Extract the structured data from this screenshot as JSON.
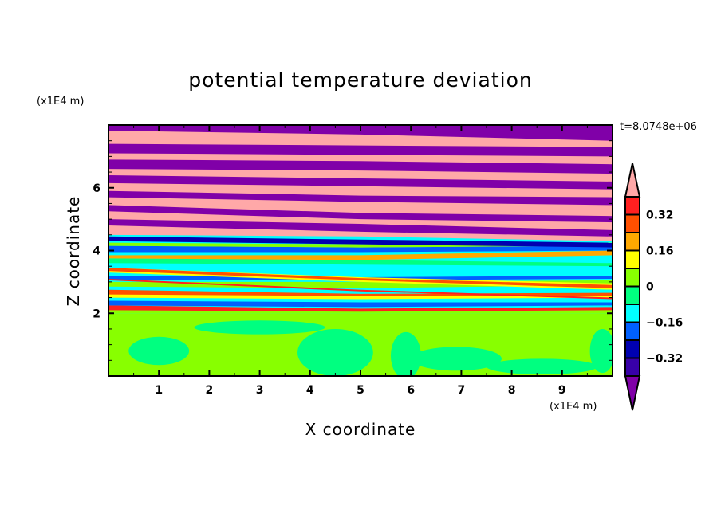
{
  "chart_data": {
    "type": "heatmap",
    "title": "potential temperature deviation",
    "xlabel": "X coordinate",
    "ylabel": "Z coordinate",
    "x_unit": "(x1E4 m)",
    "y_unit": "(x1E4 m)",
    "annotation": "t=8.0748e+06",
    "xlim": [
      0,
      10
    ],
    "ylim": [
      0,
      8
    ],
    "x_ticks": [
      "1",
      "2",
      "3",
      "4",
      "5",
      "6",
      "7",
      "8",
      "9"
    ],
    "y_ticks": [
      "2",
      "4",
      "6"
    ],
    "colorbar": {
      "levels": [
        -0.4,
        -0.32,
        -0.24,
        -0.16,
        -0.08,
        0,
        0.08,
        0.16,
        0.24,
        0.32,
        0.4
      ],
      "tick_labels": [
        "0.32",
        "0.16",
        "0",
        "−0.16",
        "−0.32"
      ],
      "tick_values": [
        0.32,
        0.16,
        0,
        -0.16,
        -0.32
      ],
      "over_color": "#ffa8a8",
      "under_color": "#8000a8",
      "colors": [
        "#3800a8",
        "#0000b0",
        "#0060ff",
        "#00ffff",
        "#00ff80",
        "#88ff00",
        "#ffff00",
        "#ffa800",
        "#ff5000",
        "#ff2020"
      ]
    },
    "approx_regions": {
      "lower_background": "#88ff00",
      "lower_blobs_color": "#00ff80",
      "lower_blobs": [
        {
          "x": 1.0,
          "z": 0.8,
          "rx": 0.6,
          "rz": 0.45
        },
        {
          "x": 3.0,
          "z": 1.55,
          "rx": 1.3,
          "rz": 0.22
        },
        {
          "x": 4.5,
          "z": 0.75,
          "rx": 0.75,
          "rz": 0.75
        },
        {
          "x": 5.9,
          "z": 0.65,
          "rx": 0.3,
          "rz": 0.75
        },
        {
          "x": 6.9,
          "z": 0.55,
          "rx": 0.9,
          "rz": 0.38
        },
        {
          "x": 8.6,
          "z": 0.3,
          "rx": 1.1,
          "rz": 0.25
        },
        {
          "x": 9.8,
          "z": 0.8,
          "rx": 0.25,
          "rz": 0.7
        }
      ],
      "stripes": [
        {
          "c": "#00ffff",
          "zb": [
            2.0,
            2.0,
            2.0
          ],
          "zt": [
            4.6,
            4.5,
            4.3
          ]
        },
        {
          "c": "#88ff00",
          "zb": [
            2.0,
            2.0,
            2.0
          ],
          "zt": [
            2.15,
            2.1,
            2.15
          ]
        },
        {
          "c": "#ff2020",
          "zb": [
            2.1,
            2.05,
            2.1
          ],
          "zt": [
            2.25,
            2.15,
            2.2
          ]
        },
        {
          "c": "#0060ff",
          "zb": [
            2.25,
            2.2,
            2.25
          ],
          "zt": [
            2.4,
            2.35,
            2.35
          ]
        },
        {
          "c": "#ffff00",
          "zb": [
            2.5,
            2.45,
            2.5
          ],
          "zt": [
            2.65,
            2.55,
            2.6
          ]
        },
        {
          "c": "#ff5000",
          "zb": [
            2.6,
            2.55,
            2.55
          ],
          "zt": [
            2.75,
            2.62,
            2.65
          ]
        },
        {
          "c": "#88ff00",
          "zb": [
            2.85,
            2.8,
            2.9
          ],
          "zt": [
            3.0,
            3.0,
            3.05
          ]
        },
        {
          "c": "#0060ff",
          "zb": [
            3.05,
            3.05,
            3.1
          ],
          "zt": [
            3.2,
            3.15,
            3.2
          ]
        },
        {
          "c": "#ffff00",
          "zb": [
            3.3,
            3.0,
            2.75
          ],
          "zt": [
            3.45,
            3.15,
            2.95
          ]
        },
        {
          "c": "#ff5000",
          "zb": [
            3.35,
            3.05,
            2.8
          ],
          "zt": [
            3.45,
            3.12,
            2.9
          ]
        },
        {
          "c": "#00ff80",
          "zb": [
            3.6,
            3.55,
            3.5
          ],
          "zt": [
            3.75,
            3.7,
            3.6
          ]
        },
        {
          "c": "#ffa800",
          "zb": [
            3.75,
            3.7,
            3.85
          ],
          "zt": [
            3.85,
            3.85,
            4.0
          ]
        },
        {
          "c": "#0060ff",
          "zb": [
            3.95,
            3.95,
            4.0
          ],
          "zt": [
            4.15,
            4.1,
            4.15
          ]
        },
        {
          "c": "#88ff00",
          "zb": [
            4.15,
            4.1,
            4.15
          ],
          "zt": [
            4.25,
            4.2,
            4.25
          ]
        },
        {
          "c": "#0000b0",
          "zb": [
            4.3,
            4.2,
            4.1
          ],
          "zt": [
            4.45,
            4.35,
            4.25
          ]
        },
        {
          "c": "#ffa8a8",
          "zb": [
            4.5,
            4.45,
            4.3
          ],
          "zt": [
            8.0,
            8.0,
            8.0
          ]
        },
        {
          "c": "#8000a8",
          "zb": [
            4.8,
            4.6,
            4.45
          ],
          "zt": [
            5.0,
            4.85,
            4.65
          ]
        },
        {
          "c": "#8000a8",
          "zb": [
            5.25,
            5.0,
            4.9
          ],
          "zt": [
            5.45,
            5.2,
            5.1
          ]
        },
        {
          "c": "#8000a8",
          "zb": [
            5.7,
            5.55,
            5.45
          ],
          "zt": [
            5.9,
            5.75,
            5.7
          ]
        },
        {
          "c": "#8000a8",
          "zb": [
            6.15,
            6.05,
            5.95
          ],
          "zt": [
            6.4,
            6.3,
            6.2
          ]
        },
        {
          "c": "#8000a8",
          "zb": [
            6.6,
            6.55,
            6.45
          ],
          "zt": [
            6.9,
            6.85,
            6.75
          ]
        },
        {
          "c": "#8000a8",
          "zb": [
            7.1,
            7.05,
            7.0
          ],
          "zt": [
            7.4,
            7.35,
            7.3
          ]
        },
        {
          "c": "#8000a8",
          "zb": [
            7.82,
            7.7,
            7.5
          ],
          "zt": [
            8.0,
            8.0,
            8.0
          ]
        },
        {
          "c": "#ff2020",
          "zb": [
            3.05,
            2.7,
            2.45
          ],
          "zt": [
            3.1,
            2.75,
            2.5
          ]
        }
      ]
    }
  }
}
